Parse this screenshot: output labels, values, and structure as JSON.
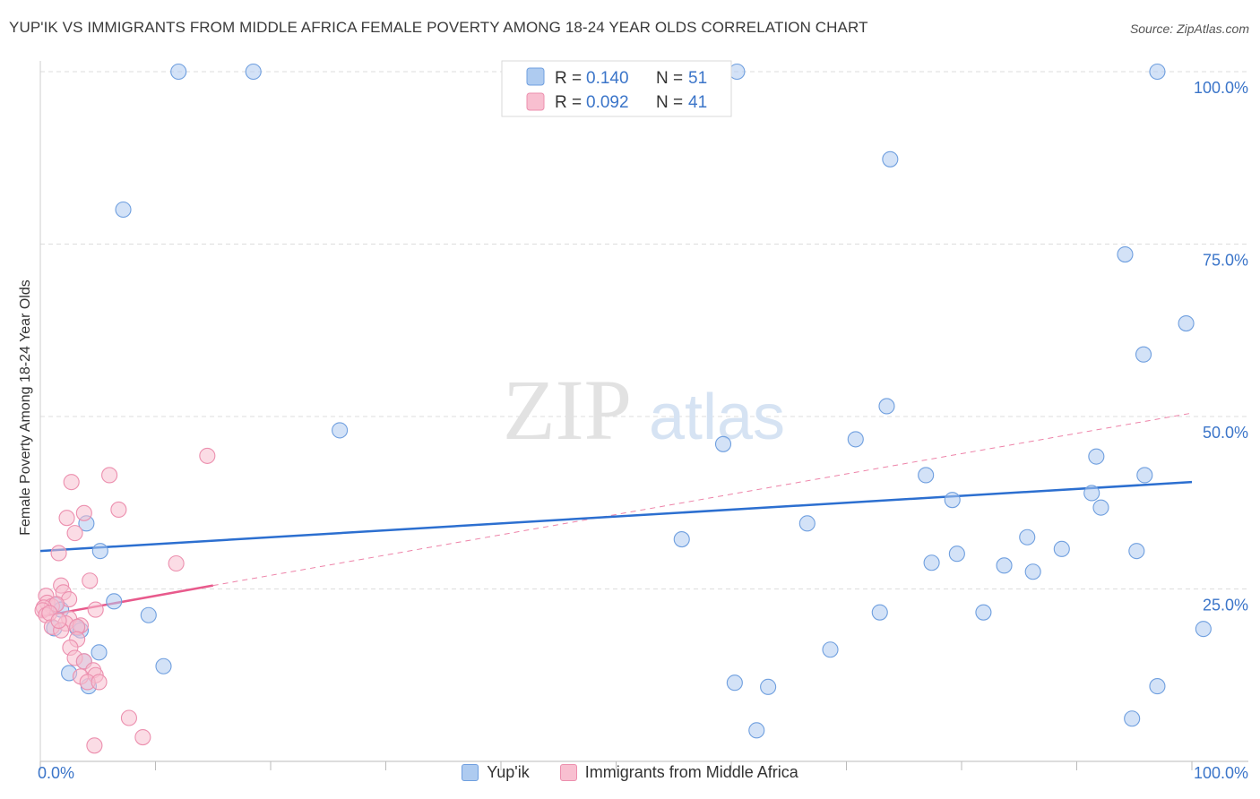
{
  "header": {
    "title": "YUP'IK VS IMMIGRANTS FROM MIDDLE AFRICA FEMALE POVERTY AMONG 18-24 YEAR OLDS CORRELATION CHART",
    "source": "Source: ZipAtlas.com"
  },
  "watermark": {
    "zip": "ZIP",
    "atlas": "atlas"
  },
  "legend": {
    "r_label": "R = ",
    "n_label": "N = ",
    "rows": [
      {
        "r": "0.140",
        "n": "51",
        "fill": "#aecbf0",
        "stroke": "#6f9fdf"
      },
      {
        "r": "0.092",
        "n": "41",
        "fill": "#f8bfd0",
        "stroke": "#ec8fae"
      }
    ]
  },
  "bottom_legend": [
    {
      "label": "Yup'ik",
      "fill": "#aecbf0",
      "stroke": "#6f9fdf"
    },
    {
      "label": "Immigrants from Middle Africa",
      "fill": "#f8bfd0",
      "stroke": "#ec8fae"
    }
  ],
  "colors": {
    "blue_line": "#2c6fd0",
    "pink_line": "#e85a8c",
    "blue_text": "#3b75c9",
    "grid": "#dddddd"
  },
  "chart_data": {
    "type": "scatter",
    "title": "YUP'IK VS IMMIGRANTS FROM MIDDLE AFRICA FEMALE POVERTY AMONG 18-24 YEAR OLDS CORRELATION CHART",
    "xlabel": "",
    "ylabel": "Female Poverty Among 18-24 Year Olds",
    "xlim": [
      0,
      100
    ],
    "ylim": [
      0,
      100
    ],
    "x_tick_labels": [
      "0.0%",
      "100.0%"
    ],
    "y_ticks": [
      25,
      50,
      75,
      100
    ],
    "y_tick_labels": [
      "25.0%",
      "50.0%",
      "75.0%",
      "100.0%"
    ],
    "grid": true,
    "series": [
      {
        "name": "Yup'ik",
        "r": 0.14,
        "n": 51,
        "trend": {
          "x": [
            0,
            100
          ],
          "y": [
            30.5,
            40.5
          ],
          "style": "solid"
        },
        "points": [
          [
            12,
            100
          ],
          [
            18.5,
            100
          ],
          [
            60.5,
            100
          ],
          [
            97,
            100
          ],
          [
            7.2,
            80
          ],
          [
            73.8,
            87.3
          ],
          [
            94.2,
            73.5
          ],
          [
            99.5,
            63.5
          ],
          [
            95.8,
            59
          ],
          [
            26,
            48
          ],
          [
            73.5,
            51.5
          ],
          [
            59.3,
            46
          ],
          [
            70.8,
            46.7
          ],
          [
            91.7,
            44.2
          ],
          [
            95.9,
            41.5
          ],
          [
            76.9,
            41.5
          ],
          [
            79.2,
            37.9
          ],
          [
            91.3,
            38.9
          ],
          [
            92.1,
            36.8
          ],
          [
            4,
            34.5
          ],
          [
            66.6,
            34.5
          ],
          [
            55.7,
            32.2
          ],
          [
            5.2,
            30.5
          ],
          [
            85.7,
            32.5
          ],
          [
            88.7,
            30.8
          ],
          [
            95.2,
            30.5
          ],
          [
            79.6,
            30.1
          ],
          [
            77.4,
            28.8
          ],
          [
            83.7,
            28.4
          ],
          [
            86.2,
            27.5
          ],
          [
            6.4,
            23.2
          ],
          [
            9.4,
            21.2
          ],
          [
            72.9,
            21.6
          ],
          [
            81.9,
            21.6
          ],
          [
            1.2,
            19.3
          ],
          [
            3.2,
            19.3
          ],
          [
            3.5,
            19
          ],
          [
            1.3,
            22.7
          ],
          [
            101,
            19.2
          ],
          [
            5.1,
            15.8
          ],
          [
            68.6,
            16.2
          ],
          [
            10.7,
            13.8
          ],
          [
            3.8,
            14.5
          ],
          [
            2.5,
            12.8
          ],
          [
            4.2,
            10.9
          ],
          [
            60.3,
            11.4
          ],
          [
            63.2,
            10.8
          ],
          [
            97,
            10.9
          ],
          [
            62.2,
            4.5
          ],
          [
            94.8,
            6.2
          ],
          [
            1.8,
            22
          ]
        ]
      },
      {
        "name": "Immigrants from Middle Africa",
        "r": 0.092,
        "n": 41,
        "trend": {
          "x": [
            0,
            15
          ],
          "y": [
            21,
            25.5
          ],
          "style": "solid"
        },
        "trend_extension": {
          "x": [
            15,
            100
          ],
          "y": [
            25.5,
            50.5
          ],
          "style": "dashed"
        },
        "points": [
          [
            14.5,
            44.3
          ],
          [
            6,
            41.5
          ],
          [
            2.7,
            40.5
          ],
          [
            2.3,
            35.3
          ],
          [
            3.8,
            36
          ],
          [
            6.8,
            36.5
          ],
          [
            3,
            33.1
          ],
          [
            1.6,
            30.2
          ],
          [
            11.8,
            28.7
          ],
          [
            4.3,
            26.2
          ],
          [
            1.8,
            25.5
          ],
          [
            2,
            24.5
          ],
          [
            0.5,
            24
          ],
          [
            2.5,
            23.5
          ],
          [
            0.6,
            23
          ],
          [
            1,
            22.5
          ],
          [
            1.4,
            22.8
          ],
          [
            0.3,
            22.3
          ],
          [
            0.2,
            21.9
          ],
          [
            4.8,
            22
          ],
          [
            0.5,
            21.2
          ],
          [
            2.5,
            20.7
          ],
          [
            2.2,
            20
          ],
          [
            3.5,
            19.7
          ],
          [
            3.2,
            19.5
          ],
          [
            1,
            19.5
          ],
          [
            1.8,
            19
          ],
          [
            3.2,
            17.7
          ],
          [
            2.6,
            16.5
          ],
          [
            3,
            15
          ],
          [
            3.8,
            14.5
          ],
          [
            4.6,
            13.2
          ],
          [
            4.8,
            12.5
          ],
          [
            3.5,
            12.3
          ],
          [
            4.1,
            11.5
          ],
          [
            5.1,
            11.5
          ],
          [
            7.7,
            6.3
          ],
          [
            8.9,
            3.5
          ],
          [
            4.7,
            2.3
          ],
          [
            0.8,
            21.5
          ],
          [
            1.6,
            20.4
          ]
        ]
      }
    ]
  }
}
